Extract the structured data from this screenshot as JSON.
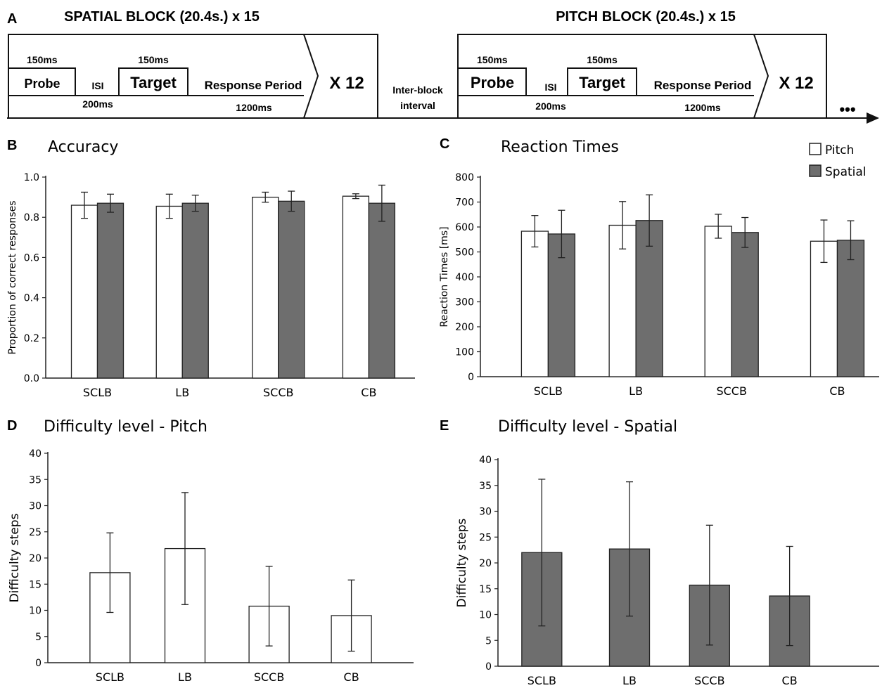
{
  "panel_a": {
    "label": "A",
    "blocks": [
      {
        "title": "SPATIAL BLOCK (20.4s.) x 15",
        "probe": "Probe",
        "probe_dur": "150ms",
        "isi": "ISI",
        "isi_dur": "200ms",
        "target": "Target",
        "target_dur": "150ms",
        "response": "Response Period",
        "response_dur": "1200ms",
        "repeat": "X 12"
      },
      {
        "title": "PITCH BLOCK (20.4s.) x 15",
        "probe": "Probe",
        "probe_dur": "150ms",
        "isi": "ISI",
        "isi_dur": "200ms",
        "target": "Target",
        "target_dur": "150ms",
        "response": "Response Period",
        "response_dur": "1200ms",
        "repeat": "X 12"
      }
    ],
    "inter_block_1": "Inter-block",
    "inter_block_2": "interval",
    "ellipsis": "•••"
  },
  "legend": {
    "items": [
      "Pitch",
      "Spatial"
    ]
  },
  "colors": {
    "pitch": "#ffffff",
    "spatial": "#6e6e6e",
    "stroke": "#222222"
  },
  "chart_data": [
    {
      "panel": "B",
      "type": "bar",
      "title": "Accuracy",
      "ylabel": "Proportion of correct responses",
      "categories": [
        "SCLB",
        "LB",
        "SCCB",
        "CB"
      ],
      "ylim": [
        0,
        1.0
      ],
      "yticks": [
        "0.0",
        "0.2",
        "0.4",
        "0.6",
        "0.8",
        "1.0"
      ],
      "series": [
        {
          "name": "Pitch",
          "values": [
            0.86,
            0.855,
            0.9,
            0.905
          ],
          "errors": [
            0.065,
            0.06,
            0.025,
            0.012
          ]
        },
        {
          "name": "Spatial",
          "values": [
            0.87,
            0.87,
            0.88,
            0.87
          ],
          "errors": [
            0.045,
            0.04,
            0.05,
            0.09
          ]
        }
      ]
    },
    {
      "panel": "C",
      "type": "bar",
      "title": "Reaction Times",
      "ylabel": "Reaction Times [ms]",
      "categories": [
        "SCLB",
        "LB",
        "SCCB",
        "CB"
      ],
      "ylim": [
        0,
        800
      ],
      "yticks": [
        "0",
        "100",
        "200",
        "300",
        "400",
        "500",
        "600",
        "700",
        "800"
      ],
      "series": [
        {
          "name": "Pitch",
          "values": [
            583,
            607,
            603,
            543
          ],
          "errors": [
            63,
            95,
            48,
            85
          ]
        },
        {
          "name": "Spatial",
          "values": [
            572,
            626,
            578,
            547
          ],
          "errors": [
            95,
            103,
            60,
            78
          ]
        }
      ]
    },
    {
      "panel": "D",
      "type": "bar",
      "title": "Difficulty level - Pitch",
      "ylabel": "Difficulty steps",
      "categories": [
        "SCLB",
        "LB",
        "SCCB",
        "CB"
      ],
      "ylim": [
        0,
        40
      ],
      "yticks": [
        "0",
        "5",
        "10",
        "15",
        "20",
        "25",
        "30",
        "35",
        "40"
      ],
      "series": [
        {
          "name": "Pitch",
          "values": [
            17.2,
            21.8,
            10.8,
            9.0
          ],
          "errors": [
            7.6,
            10.7,
            7.6,
            6.8
          ]
        }
      ]
    },
    {
      "panel": "E",
      "type": "bar",
      "title": "Difficulty level - Spatial",
      "ylabel": "Difficulty steps",
      "categories": [
        "SCLB",
        "LB",
        "SCCB",
        "CB"
      ],
      "ylim": [
        0,
        40
      ],
      "yticks": [
        "0",
        "5",
        "10",
        "15",
        "20",
        "25",
        "30",
        "35",
        "40"
      ],
      "series": [
        {
          "name": "Spatial",
          "values": [
            22.0,
            22.7,
            15.7,
            13.6
          ],
          "errors": [
            14.2,
            13.0,
            11.6,
            9.6
          ]
        }
      ]
    }
  ]
}
